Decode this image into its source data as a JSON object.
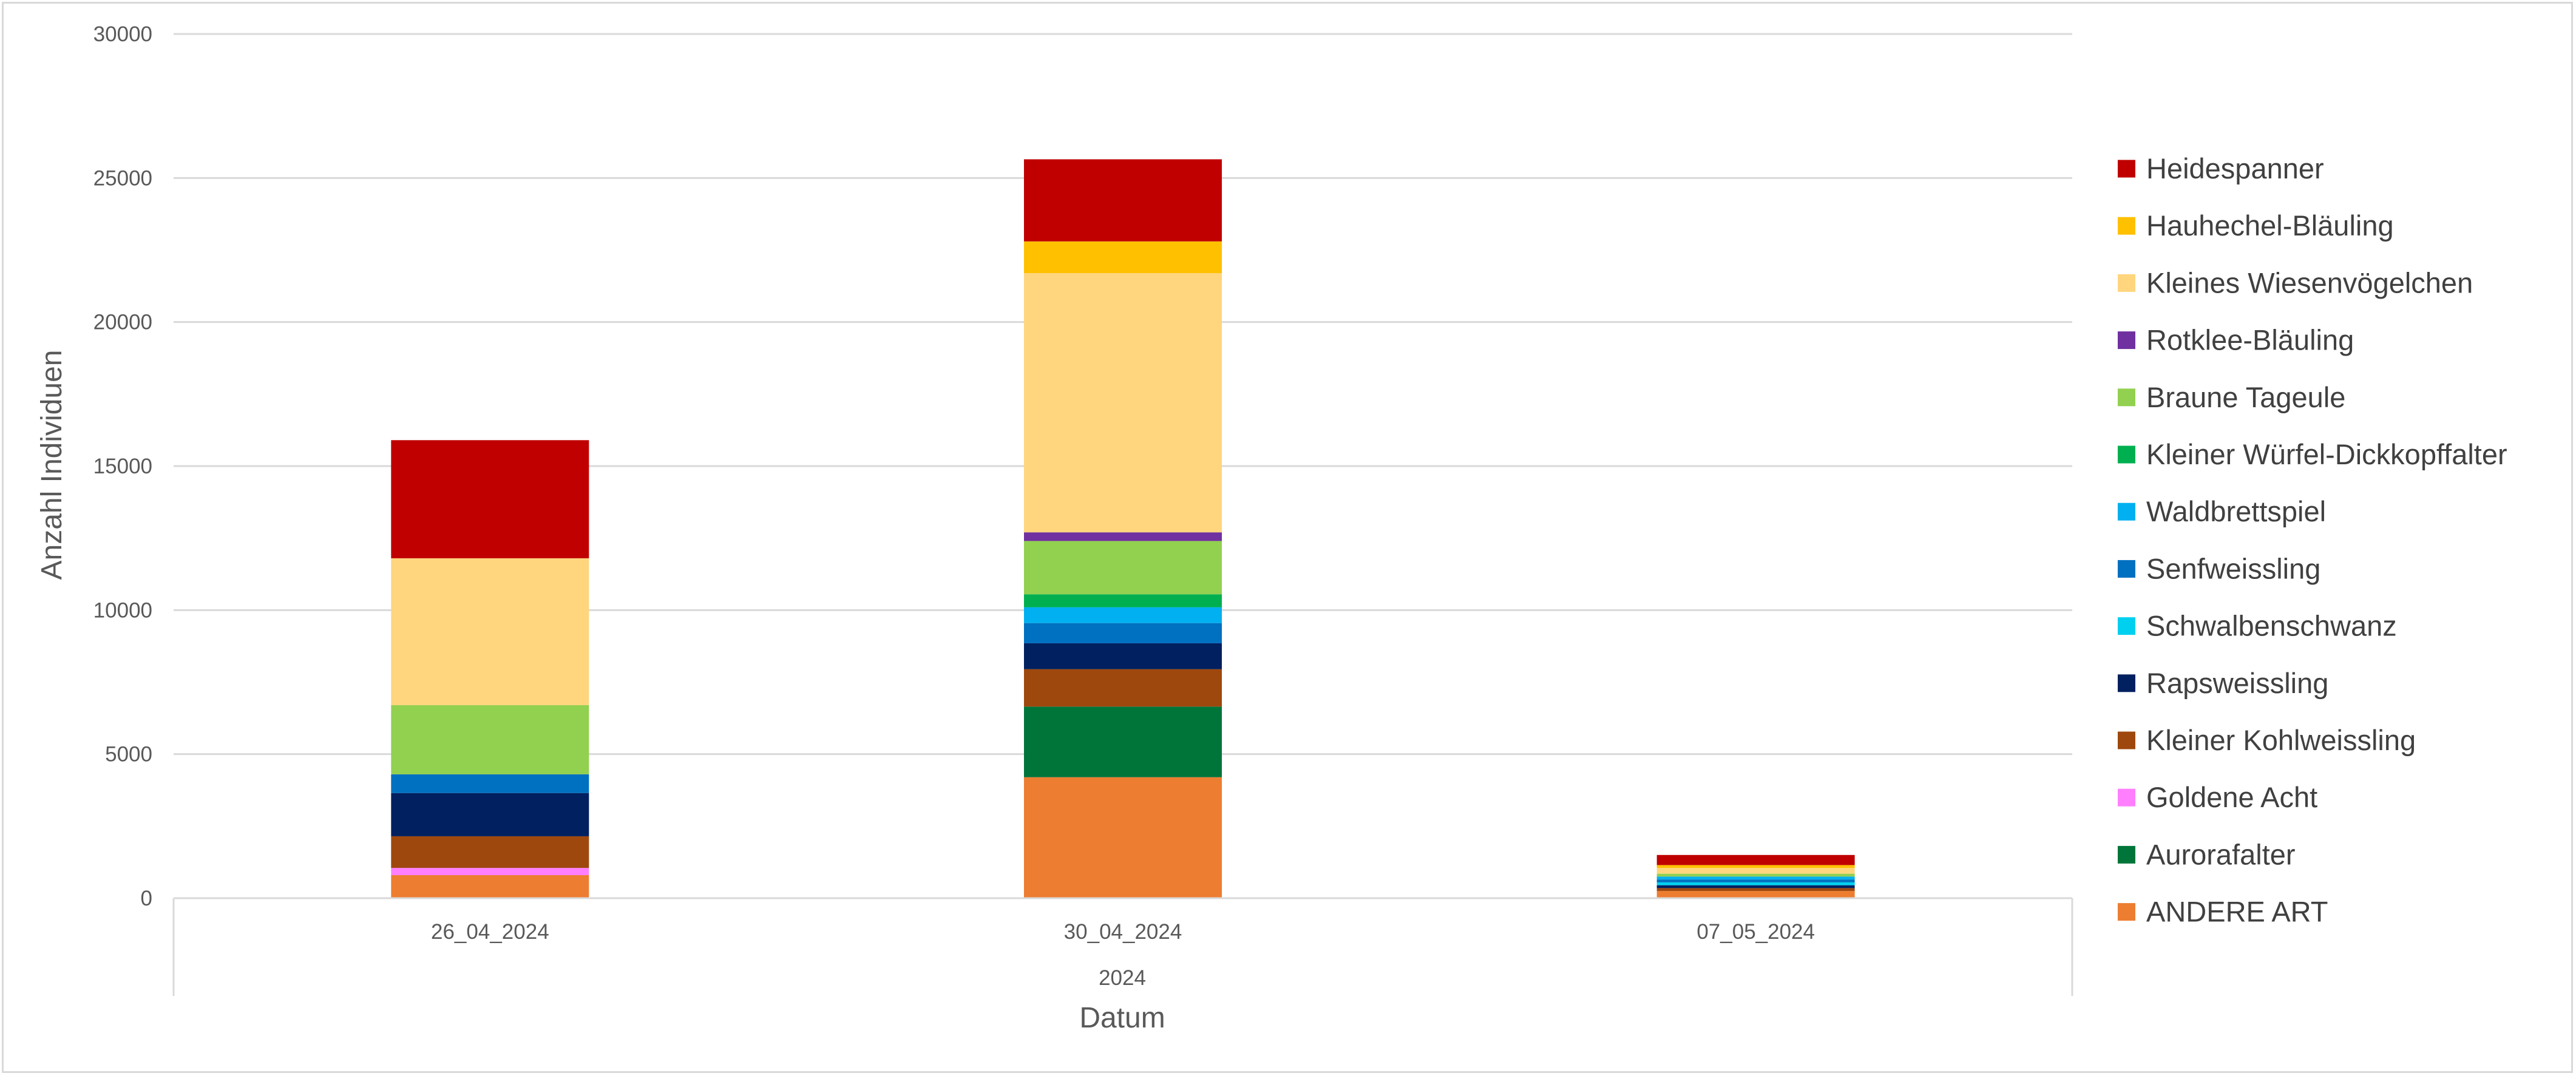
{
  "chart_data": {
    "type": "bar",
    "stacked": true,
    "title": "",
    "xlabel": "Datum",
    "ylabel": "Anzahl Individuen",
    "group_label": "2024",
    "ylim": [
      0,
      30000
    ],
    "y_ticks": [
      0,
      5000,
      10000,
      15000,
      20000,
      25000,
      30000
    ],
    "grid": true,
    "legend_position": "right",
    "categories": [
      "26_04_2024",
      "30_04_2024",
      "07_05_2024"
    ],
    "series": [
      {
        "name": "ANDERE ART",
        "color": "#ED7D31",
        "values": [
          800,
          4200,
          250
        ]
      },
      {
        "name": "Aurorafalter",
        "color": "#00753A",
        "values": [
          0,
          2450,
          0
        ]
      },
      {
        "name": "Goldene Acht",
        "color": "#FF7FFF",
        "values": [
          250,
          0,
          0
        ]
      },
      {
        "name": "Kleiner Kohlweissling",
        "color": "#9E480E",
        "values": [
          1100,
          1300,
          100
        ]
      },
      {
        "name": "Rapsweissling",
        "color": "#002060",
        "values": [
          1500,
          900,
          100
        ]
      },
      {
        "name": "Schwalbenschwanz",
        "color": "#00D0F0",
        "values": [
          0,
          0,
          100
        ]
      },
      {
        "name": "Senfweissling",
        "color": "#0070C0",
        "values": [
          650,
          700,
          100
        ]
      },
      {
        "name": "Waldbrettspiel",
        "color": "#00B0F0",
        "values": [
          0,
          550,
          100
        ]
      },
      {
        "name": "Kleiner Würfel-Dickkopffalter",
        "color": "#00B050",
        "values": [
          0,
          450,
          0
        ]
      },
      {
        "name": "Braune Tageule",
        "color": "#92D050",
        "values": [
          2400,
          1850,
          100
        ]
      },
      {
        "name": "Rotklee-Bläuling",
        "color": "#7030A0",
        "values": [
          0,
          300,
          0
        ]
      },
      {
        "name": "Kleines Wiesenvögelchen",
        "color": "#FFD57E",
        "values": [
          5100,
          9000,
          200
        ]
      },
      {
        "name": "Hauhechel-Bläuling",
        "color": "#FFC000",
        "values": [
          0,
          1100,
          100
        ]
      },
      {
        "name": "Heidespanner",
        "color": "#C00000",
        "values": [
          4100,
          2850,
          350
        ]
      }
    ]
  }
}
